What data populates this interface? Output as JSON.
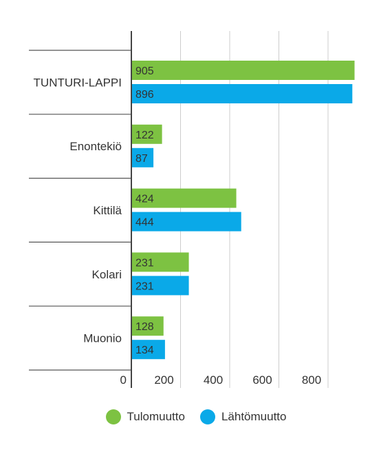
{
  "chart_data": {
    "type": "bar",
    "orientation": "horizontal",
    "categories": [
      "TUNTURI-LAPPI",
      "Enontekiö",
      "Kittilä",
      "Kolari",
      "Muonio"
    ],
    "series": [
      {
        "name": "Tulomuutto",
        "values": [
          905,
          122,
          424,
          231,
          128
        ],
        "color": "#7dc242"
      },
      {
        "name": "Lähtömuutto",
        "values": [
          896,
          87,
          444,
          231,
          134
        ],
        "color": "#0aa9e8"
      }
    ],
    "xticks": [
      "0",
      "200",
      "400",
      "600",
      "800"
    ],
    "xlim": [
      0,
      900
    ],
    "grid": true,
    "legend_position": "bottom"
  }
}
